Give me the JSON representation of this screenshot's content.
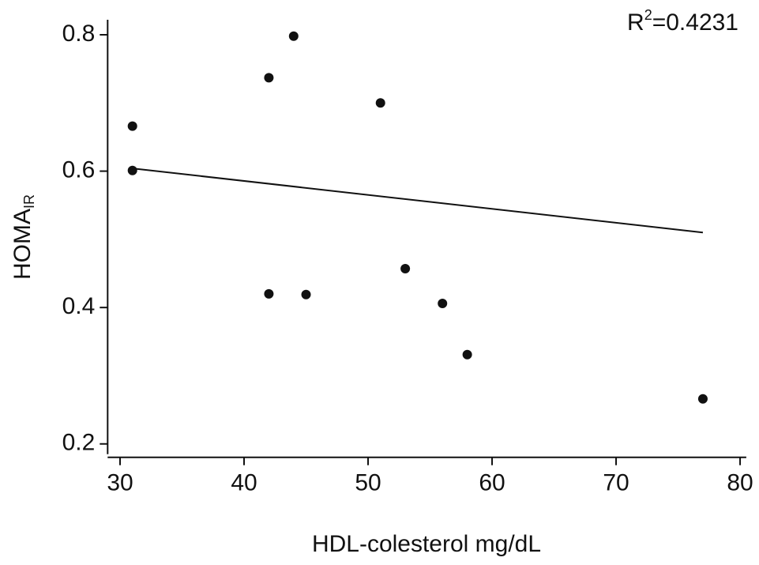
{
  "chart_data": {
    "type": "scatter",
    "x_label": "HDL-colesterol mg/dL",
    "y_label": {
      "main": "HOMA",
      "sub": "IR"
    },
    "annotation": {
      "main": "R",
      "sup": "2",
      "rest": "=0.4231"
    },
    "x": [
      31,
      31,
      42,
      44,
      51,
      42,
      45,
      53,
      56,
      58,
      77
    ],
    "values": [
      0.666,
      0.601,
      0.737,
      0.798,
      0.7,
      0.42,
      0.419,
      0.457,
      0.406,
      0.331,
      0.266
    ],
    "color": "#111111",
    "fit": {
      "x": [
        31,
        77
      ],
      "values": [
        0.604,
        0.51
      ]
    },
    "xlim": [
      29,
      80.5
    ],
    "ylim": [
      0.185,
      0.822
    ],
    "xticks": [
      30,
      40,
      50,
      60,
      70,
      80
    ],
    "yticks": [
      0.2,
      0.4,
      0.6,
      0.8
    ],
    "grid": false
  }
}
